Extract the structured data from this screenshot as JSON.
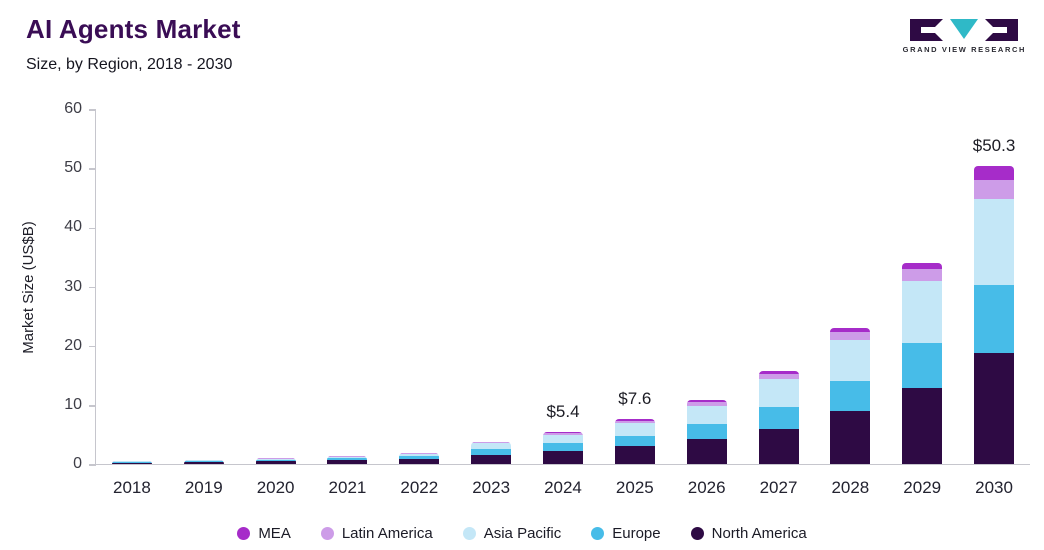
{
  "header": {
    "title": "AI Agents Market",
    "subtitle": "Size, by Region, 2018 - 2030",
    "logo_text": "GRAND VIEW RESEARCH"
  },
  "chart_data": {
    "type": "bar",
    "stacked": true,
    "title": "AI Agents Market",
    "subtitle": "Size, by Region, 2018 - 2030",
    "xlabel": "",
    "ylabel": "Market Size (US$B)",
    "ylim": [
      0,
      60
    ],
    "yticks": [
      0,
      10,
      20,
      30,
      40,
      50,
      60
    ],
    "grid": false,
    "legend_position": "bottom",
    "categories": [
      "2018",
      "2019",
      "2020",
      "2021",
      "2022",
      "2023",
      "2024",
      "2025",
      "2026",
      "2027",
      "2028",
      "2029",
      "2030"
    ],
    "series": [
      {
        "name": "North America",
        "color": "#2e0a44",
        "values": [
          0.2,
          0.3,
          0.45,
          0.6,
          0.8,
          1.5,
          2.2,
          3.0,
          4.2,
          6.0,
          9.0,
          12.8,
          18.8
        ]
      },
      {
        "name": "Europe",
        "color": "#47bce8",
        "values": [
          0.12,
          0.17,
          0.25,
          0.35,
          0.5,
          1.0,
          1.3,
          1.8,
          2.6,
          3.7,
          5.0,
          7.7,
          11.5
        ]
      },
      {
        "name": "Asia Pacific",
        "color": "#c4e7f7",
        "values": [
          0.12,
          0.16,
          0.22,
          0.3,
          0.45,
          1.0,
          1.4,
          2.1,
          3.0,
          4.6,
          7.0,
          10.5,
          14.5
        ]
      },
      {
        "name": "Latin America",
        "color": "#cd9ce8",
        "values": [
          0.03,
          0.04,
          0.05,
          0.08,
          0.08,
          0.2,
          0.3,
          0.4,
          0.6,
          1.0,
          1.3,
          2.0,
          3.2
        ]
      },
      {
        "name": "MEA",
        "color": "#a62cc9",
        "values": [
          0.03,
          0.04,
          0.05,
          0.07,
          0.07,
          0.1,
          0.2,
          0.3,
          0.4,
          0.5,
          0.7,
          1.0,
          2.3
        ]
      }
    ],
    "totals": [
      0.5,
      0.7,
      1.0,
      1.4,
      1.9,
      3.8,
      5.4,
      7.6,
      10.8,
      15.8,
      23.0,
      34.0,
      50.3
    ],
    "annotations": [
      {
        "category": "2024",
        "label": "$5.4"
      },
      {
        "category": "2025",
        "label": "$7.6"
      },
      {
        "category": "2030",
        "label": "$50.3"
      }
    ],
    "legend": [
      "MEA",
      "Latin America",
      "Asia Pacific",
      "Europe",
      "North America"
    ]
  }
}
